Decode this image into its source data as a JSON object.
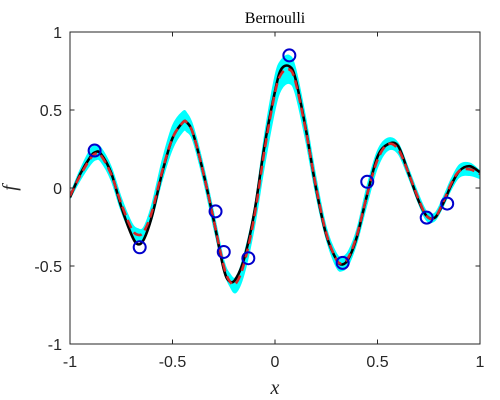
{
  "chart_data": {
    "type": "line",
    "title": "Bernoulli",
    "xlabel": "x",
    "ylabel": "f",
    "xlim": [
      -1,
      1
    ],
    "ylim": [
      -1,
      1
    ],
    "xticks": [
      -1,
      -0.5,
      0,
      0.5,
      1
    ],
    "yticks": [
      -1,
      -0.5,
      0,
      0.5,
      1
    ],
    "xtick_labels": [
      "-1",
      "-0.5",
      "0",
      "0.5",
      "1"
    ],
    "ytick_labels": [
      "-1",
      "-0.5",
      "0",
      "0.5",
      "1"
    ],
    "grid": false,
    "band": {
      "color": "#00FFFF",
      "x": [
        -1,
        -0.95,
        -0.9,
        -0.875,
        -0.85,
        -0.8,
        -0.75,
        -0.7,
        -0.67,
        -0.64,
        -0.6,
        -0.55,
        -0.5,
        -0.45,
        -0.43,
        -0.4,
        -0.35,
        -0.3,
        -0.25,
        -0.22,
        -0.19,
        -0.15,
        -0.1,
        -0.05,
        0,
        0.03,
        0.07,
        0.1,
        0.15,
        0.2,
        0.25,
        0.3,
        0.33,
        0.36,
        0.4,
        0.45,
        0.5,
        0.55,
        0.6,
        0.65,
        0.7,
        0.74,
        0.78,
        0.82,
        0.86,
        0.9,
        0.95,
        1
      ],
      "lower": [
        -0.07,
        0.05,
        0.15,
        0.18,
        0.17,
        0.05,
        -0.15,
        -0.3,
        -0.34,
        -0.32,
        -0.2,
        0.05,
        0.25,
        0.36,
        0.36,
        0.3,
        0.05,
        -0.25,
        -0.53,
        -0.63,
        -0.67,
        -0.55,
        -0.25,
        0.15,
        0.5,
        0.63,
        0.67,
        0.6,
        0.3,
        -0.05,
        -0.33,
        -0.51,
        -0.53,
        -0.49,
        -0.35,
        -0.1,
        0.13,
        0.24,
        0.22,
        0.07,
        -0.1,
        -0.21,
        -0.21,
        -0.12,
        -0.01,
        0.07,
        0.08,
        0.06
      ],
      "upper": [
        -0.04,
        0.12,
        0.25,
        0.27,
        0.26,
        0.14,
        -0.06,
        -0.22,
        -0.26,
        -0.25,
        -0.1,
        0.18,
        0.4,
        0.49,
        0.48,
        0.4,
        0.15,
        -0.15,
        -0.46,
        -0.55,
        -0.57,
        -0.42,
        -0.12,
        0.35,
        0.72,
        0.82,
        0.85,
        0.77,
        0.45,
        0.07,
        -0.25,
        -0.42,
        -0.44,
        -0.4,
        -0.26,
        0.02,
        0.24,
        0.32,
        0.29,
        0.13,
        -0.04,
        -0.15,
        -0.16,
        -0.06,
        0.06,
        0.15,
        0.16,
        0.11
      ]
    },
    "series": [
      {
        "color": "#000000",
        "style": "solid",
        "x": [
          -1,
          -0.95,
          -0.9,
          -0.875,
          -0.85,
          -0.8,
          -0.75,
          -0.7,
          -0.67,
          -0.64,
          -0.6,
          -0.55,
          -0.5,
          -0.45,
          -0.43,
          -0.4,
          -0.35,
          -0.3,
          -0.25,
          -0.22,
          -0.19,
          -0.15,
          -0.1,
          -0.05,
          0,
          0.03,
          0.07,
          0.1,
          0.15,
          0.2,
          0.25,
          0.3,
          0.33,
          0.36,
          0.4,
          0.45,
          0.5,
          0.55,
          0.6,
          0.65,
          0.7,
          0.74,
          0.78,
          0.82,
          0.86,
          0.9,
          0.95,
          1
        ],
        "values": [
          -0.06,
          0.09,
          0.2,
          0.23,
          0.22,
          0.1,
          -0.12,
          -0.3,
          -0.36,
          -0.33,
          -0.18,
          0.1,
          0.32,
          0.42,
          0.42,
          0.35,
          0.1,
          -0.2,
          -0.52,
          -0.6,
          -0.58,
          -0.45,
          -0.15,
          0.28,
          0.62,
          0.76,
          0.78,
          0.7,
          0.38,
          0.0,
          -0.3,
          -0.46,
          -0.49,
          -0.45,
          -0.31,
          -0.04,
          0.2,
          0.28,
          0.27,
          0.1,
          -0.08,
          -0.18,
          -0.19,
          -0.1,
          0.02,
          0.11,
          0.14,
          0.1
        ]
      },
      {
        "color": "#D62728",
        "style": "dashed",
        "x": [
          -1,
          -0.95,
          -0.9,
          -0.875,
          -0.85,
          -0.8,
          -0.75,
          -0.7,
          -0.67,
          -0.64,
          -0.6,
          -0.55,
          -0.5,
          -0.45,
          -0.43,
          -0.4,
          -0.35,
          -0.3,
          -0.25,
          -0.22,
          -0.19,
          -0.15,
          -0.1,
          -0.05,
          0,
          0.03,
          0.07,
          0.1,
          0.15,
          0.2,
          0.25,
          0.3,
          0.33,
          0.36,
          0.4,
          0.45,
          0.5,
          0.55,
          0.6,
          0.65,
          0.7,
          0.74,
          0.78,
          0.82,
          0.86,
          0.9,
          0.95,
          1
        ],
        "values": [
          -0.05,
          0.08,
          0.19,
          0.22,
          0.21,
          0.09,
          -0.1,
          -0.26,
          -0.3,
          -0.28,
          -0.15,
          0.11,
          0.32,
          0.42,
          0.42,
          0.35,
          0.1,
          -0.2,
          -0.5,
          -0.6,
          -0.61,
          -0.48,
          -0.18,
          0.25,
          0.61,
          0.73,
          0.76,
          0.68,
          0.37,
          0.01,
          -0.29,
          -0.46,
          -0.48,
          -0.44,
          -0.3,
          -0.04,
          0.18,
          0.28,
          0.25,
          0.1,
          -0.07,
          -0.18,
          -0.19,
          -0.09,
          0.03,
          0.11,
          0.12,
          0.09
        ]
      }
    ],
    "scatter": {
      "color": "#0000CC",
      "marker": "circle-open",
      "points": [
        {
          "x": -0.88,
          "y": 0.24
        },
        {
          "x": -0.66,
          "y": -0.38
        },
        {
          "x": -0.29,
          "y": -0.15
        },
        {
          "x": -0.25,
          "y": -0.41
        },
        {
          "x": -0.13,
          "y": -0.45
        },
        {
          "x": 0.07,
          "y": 0.85
        },
        {
          "x": 0.33,
          "y": -0.48
        },
        {
          "x": 0.45,
          "y": 0.04
        },
        {
          "x": 0.74,
          "y": -0.19
        },
        {
          "x": 0.84,
          "y": -0.1
        }
      ]
    }
  }
}
